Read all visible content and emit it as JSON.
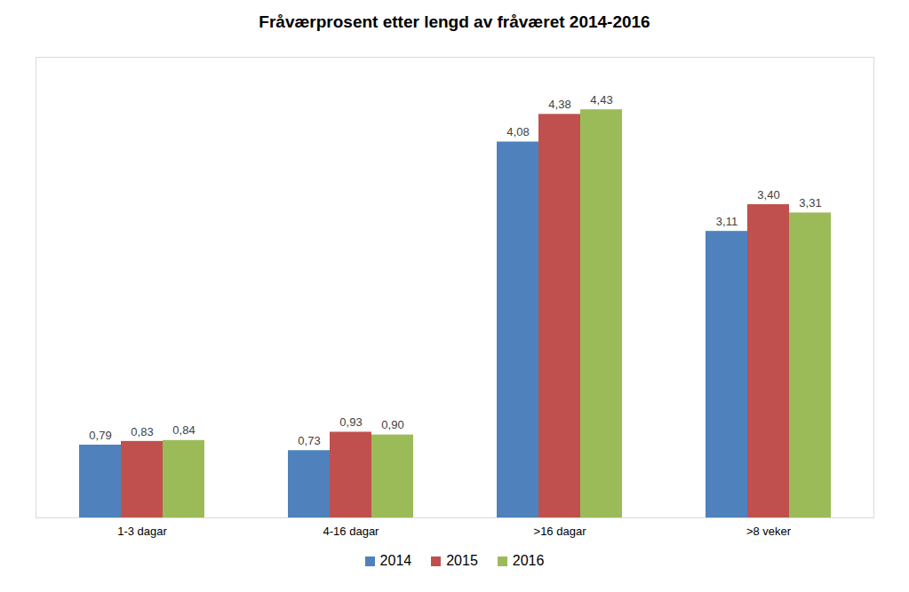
{
  "chart_data": {
    "type": "bar",
    "title": "Fråværprosent etter lengd av fråværet 2014-2016",
    "categories": [
      "1-3 dagar",
      "4-16 dagar",
      ">16 dagar",
      ">8 veker"
    ],
    "series": [
      {
        "name": "2014",
        "color": "#4f81bd",
        "values": [
          0.79,
          0.73,
          4.08,
          3.11
        ],
        "value_labels": [
          "0,79",
          "0,73",
          "4,08",
          "3,11"
        ]
      },
      {
        "name": "2015",
        "color": "#c0504d",
        "values": [
          0.83,
          0.93,
          4.38,
          3.4
        ],
        "value_labels": [
          "0,83",
          "0,93",
          "4,38",
          "3,40"
        ]
      },
      {
        "name": "2016",
        "color": "#9bbb59",
        "values": [
          0.84,
          0.9,
          4.43,
          3.31
        ],
        "value_labels": [
          "0,84",
          "0,90",
          "4,43",
          "3,31"
        ]
      }
    ],
    "ylim": [
      0,
      5
    ],
    "yticks": [],
    "grid": false,
    "data_labels": true,
    "tick_labels": "x",
    "legend": "bottom"
  }
}
